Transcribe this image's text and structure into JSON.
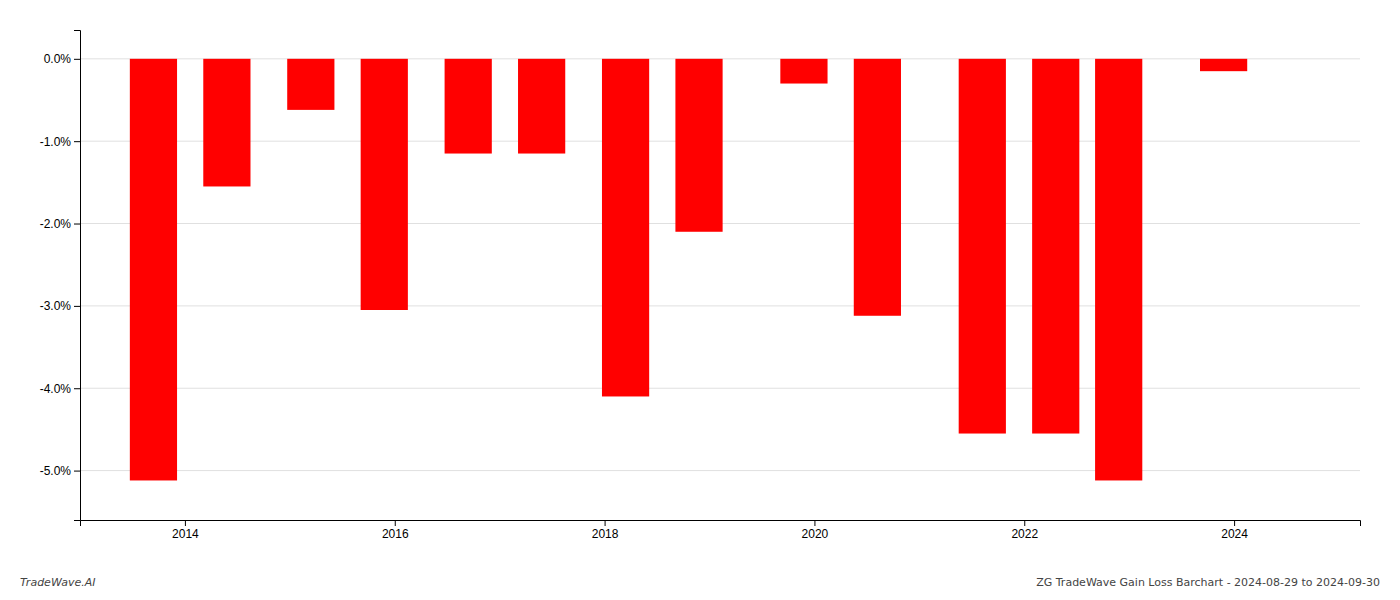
{
  "chart_data": {
    "type": "bar",
    "x": [
      2013.7,
      2014.4,
      2015.2,
      2015.9,
      2016.7,
      2017.4,
      2018.2,
      2018.9,
      2019.9,
      2020.6,
      2021.6,
      2022.3,
      2022.9,
      2023.9
    ],
    "values": [
      -5.12,
      -1.55,
      -0.62,
      -3.05,
      -1.15,
      -1.15,
      -4.1,
      -2.1,
      -0.3,
      -3.12,
      -4.55,
      -4.55,
      -5.12,
      -0.15
    ],
    "color": "#ff0000",
    "xlim": [
      2013.0,
      2025.2
    ],
    "xticks": [
      2014,
      2016,
      2018,
      2020,
      2022,
      2024
    ],
    "ylim": [
      -5.6,
      0.35
    ],
    "yticks": [
      {
        "value": -5,
        "label": "-5.0%"
      },
      {
        "value": -4,
        "label": "-4.0%"
      },
      {
        "value": -3,
        "label": "-3.0%"
      },
      {
        "value": -2,
        "label": "-2.0%"
      },
      {
        "value": -1,
        "label": "-1.0%"
      },
      {
        "value": 0,
        "label": "0.0%"
      }
    ],
    "grid": true,
    "annotations": [
      "TradeWave.AI",
      "ZG TradeWave Gain Loss Barchart - 2024-08-29 to 2024-09-30"
    ]
  }
}
